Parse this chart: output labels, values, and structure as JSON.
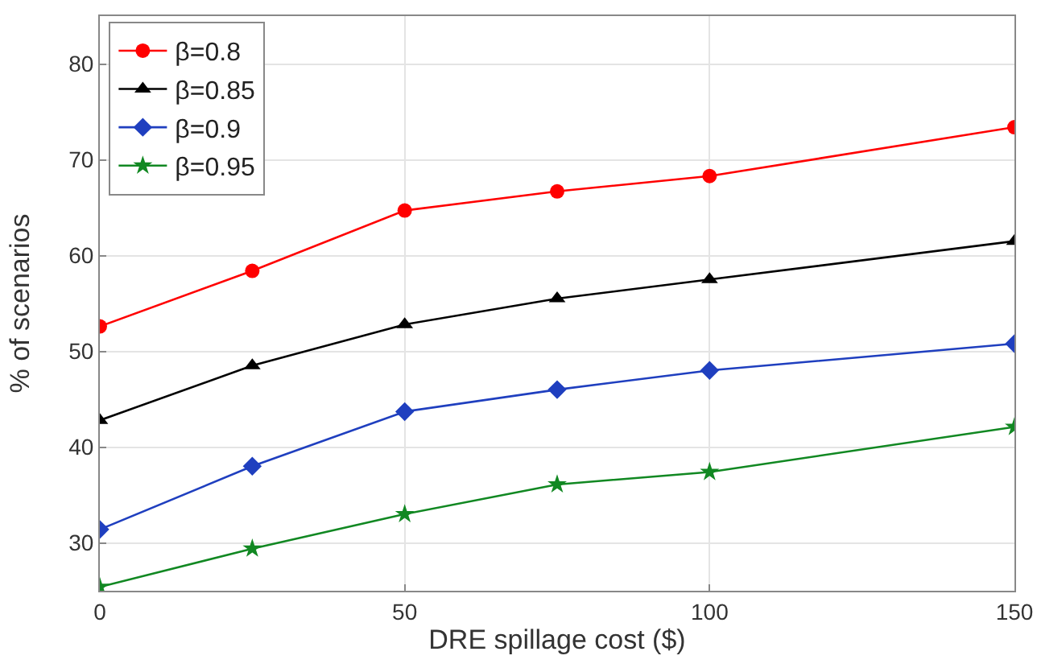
{
  "chart_data": {
    "type": "line",
    "xlabel": "DRE spillage cost ($)",
    "ylabel": "% of scenarios",
    "x": [
      0,
      25,
      50,
      75,
      100,
      150
    ],
    "series": [
      {
        "name": "β=0.8",
        "color": "#ff0000",
        "marker": "circle",
        "values": [
          52.6,
          58.4,
          64.7,
          66.7,
          68.3,
          73.4
        ]
      },
      {
        "name": "β=0.85",
        "color": "#000000",
        "marker": "triangle",
        "values": [
          42.8,
          48.5,
          52.8,
          55.5,
          57.5,
          61.5
        ]
      },
      {
        "name": "β=0.9",
        "color": "#1f3fbf",
        "marker": "diamond",
        "values": [
          31.4,
          38.0,
          43.7,
          46.0,
          48.0,
          50.8
        ]
      },
      {
        "name": "β=0.95",
        "color": "#118822",
        "marker": "star",
        "values": [
          25.4,
          29.4,
          33.0,
          36.1,
          37.4,
          42.1
        ]
      }
    ],
    "xlim": [
      0,
      150
    ],
    "xticks": [
      0,
      50,
      100,
      150
    ],
    "ylim": [
      25,
      85
    ],
    "yticks": [
      30,
      40,
      50,
      60,
      70,
      80
    ],
    "grid": true,
    "legend": "top left",
    "line_style": "solid"
  }
}
